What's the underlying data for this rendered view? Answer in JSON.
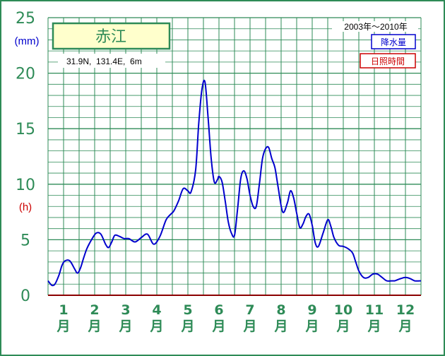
{
  "chart_data": {
    "type": "line",
    "station": "赤江",
    "location": "31.9N,  131.4E,  6m",
    "period": "2003年～2010年",
    "y_unit_precip": "(mm)",
    "y_unit_sunshine": "(h)",
    "ylim": [
      0,
      25
    ],
    "y_ticks": [
      "0",
      "5",
      "10",
      "15",
      "20",
      "25"
    ],
    "months": [
      "1",
      "2",
      "3",
      "4",
      "5",
      "6",
      "7",
      "8",
      "9",
      "10",
      "11",
      "12"
    ],
    "month_suffix": "月",
    "grid": "on",
    "legend_position": "top-right",
    "series": [
      {
        "name": "降水量",
        "color": "#0000cd",
        "x": [
          0.0,
          0.12,
          0.22,
          0.35,
          0.45,
          0.55,
          0.7,
          0.85,
          0.95,
          1.05,
          1.15,
          1.25,
          1.4,
          1.55,
          1.7,
          1.85,
          1.95,
          2.05,
          2.15,
          2.3,
          2.45,
          2.6,
          2.8,
          3.0,
          3.2,
          3.4,
          3.6,
          3.8,
          3.95,
          4.05,
          4.2,
          4.35,
          4.5,
          4.6,
          4.75,
          4.85,
          4.95,
          5.05,
          5.15,
          5.25,
          5.35,
          5.45,
          5.5,
          5.6,
          5.7,
          5.8,
          5.9,
          6.0,
          6.1,
          6.2,
          6.3,
          6.4,
          6.5,
          6.6,
          6.7,
          6.8,
          6.9,
          7.0,
          7.1,
          7.2,
          7.3,
          7.4,
          7.55,
          7.7,
          7.8,
          7.9,
          8.0,
          8.1,
          8.2,
          8.3,
          8.4,
          8.5,
          8.6,
          8.7,
          8.85,
          9.0,
          9.1,
          9.2,
          9.35,
          9.5,
          9.65,
          9.8,
          9.9,
          10.0,
          10.15,
          10.3,
          10.45,
          10.6,
          10.75,
          10.9,
          11.05,
          11.15,
          11.25,
          11.35,
          11.5,
          11.65,
          11.8,
          12.0
        ],
        "values": [
          1.3,
          0.9,
          1.0,
          1.8,
          2.7,
          3.1,
          3.1,
          2.4,
          2.0,
          2.5,
          3.4,
          4.2,
          5.0,
          5.6,
          5.5,
          4.6,
          4.3,
          4.8,
          5.4,
          5.3,
          5.1,
          5.1,
          4.8,
          5.2,
          5.5,
          4.6,
          5.3,
          6.8,
          7.3,
          7.6,
          8.5,
          9.6,
          9.4,
          9.3,
          11.3,
          15.5,
          18.5,
          19.2,
          16.0,
          12.3,
          10.2,
          10.4,
          10.7,
          10.2,
          8.5,
          6.6,
          5.6,
          5.4,
          7.8,
          10.5,
          11.2,
          10.5,
          9.0,
          8.0,
          8.0,
          10.0,
          12.3,
          13.2,
          13.3,
          12.3,
          11.5,
          9.8,
          7.5,
          8.3,
          9.4,
          8.8,
          7.4,
          6.1,
          6.4,
          7.1,
          7.3,
          6.3,
          4.7,
          4.4,
          5.6,
          6.8,
          6.2,
          5.2,
          4.5,
          4.4,
          4.2,
          3.8,
          3.0,
          2.2,
          1.6,
          1.6,
          1.9,
          1.9,
          1.6,
          1.3,
          1.3,
          1.3,
          1.4,
          1.5,
          1.6,
          1.5,
          1.3,
          1.3
        ],
        "name_note": ""
      },
      {
        "name": "日照時間",
        "color": "#cc0000",
        "values": []
      }
    ]
  },
  "legend": {
    "precip_label": "降水量",
    "sunshine_label": "日照時間",
    "precip_color": "#0000cd",
    "sunshine_color": "#cc0000"
  },
  "colors": {
    "grid": "#2e8b57",
    "label": "#2e8b57",
    "unit_mm": "#0000cd",
    "unit_h": "#cc0000",
    "title_box_fill": "#ffffcc",
    "baseline": "#8b0000"
  }
}
